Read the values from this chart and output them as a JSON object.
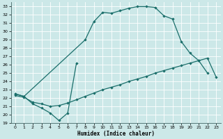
{
  "xlabel": "Humidex (Indice chaleur)",
  "bg_color": "#cce8e8",
  "grid_color": "#ffffff",
  "line_color": "#1a6e6a",
  "xlim": [
    -0.5,
    23.5
  ],
  "ylim": [
    19,
    33.5
  ],
  "upper_x": [
    0,
    1,
    8,
    9,
    10,
    11,
    12,
    13,
    14,
    15,
    16,
    17,
    18,
    19,
    20,
    21,
    22
  ],
  "upper_y": [
    22.5,
    22.2,
    29.0,
    31.2,
    32.3,
    32.2,
    32.5,
    32.8,
    33.0,
    33.0,
    32.9,
    31.9,
    31.5,
    28.8,
    27.4,
    26.5,
    25.0
  ],
  "loop_x": [
    0,
    1,
    2,
    3,
    4,
    5,
    6,
    7
  ],
  "loop_y": [
    22.5,
    22.2,
    21.3,
    20.8,
    20.2,
    19.3,
    20.2,
    26.2
  ],
  "diag_x": [
    0,
    1,
    2,
    3,
    4,
    5,
    6,
    7,
    8,
    9,
    10,
    11,
    12,
    13,
    14,
    15,
    16,
    17,
    18,
    19,
    20,
    21,
    22,
    23
  ],
  "diag_y": [
    22.3,
    22.1,
    21.5,
    21.3,
    21.0,
    21.1,
    21.4,
    21.8,
    22.2,
    22.6,
    23.0,
    23.3,
    23.6,
    24.0,
    24.3,
    24.6,
    25.0,
    25.3,
    25.6,
    25.9,
    26.2,
    26.5,
    26.8,
    24.5
  ]
}
